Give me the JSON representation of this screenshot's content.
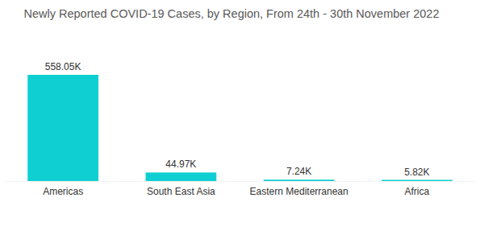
{
  "chart_data": {
    "type": "bar",
    "title": "Newly Reported COVID-19 Cases, by Region, From 24th - 30th November 2022",
    "categories": [
      "Americas",
      "South East Asia",
      "Eastern Mediterranean",
      "Africa"
    ],
    "values": [
      558050,
      44970,
      7240,
      5820
    ],
    "value_labels": [
      "558.05K",
      "44.97K",
      "7.24K",
      "5.82K"
    ],
    "color": "#0fcfd2",
    "data_labels": true,
    "tick_labels": "x",
    "grid": false
  }
}
